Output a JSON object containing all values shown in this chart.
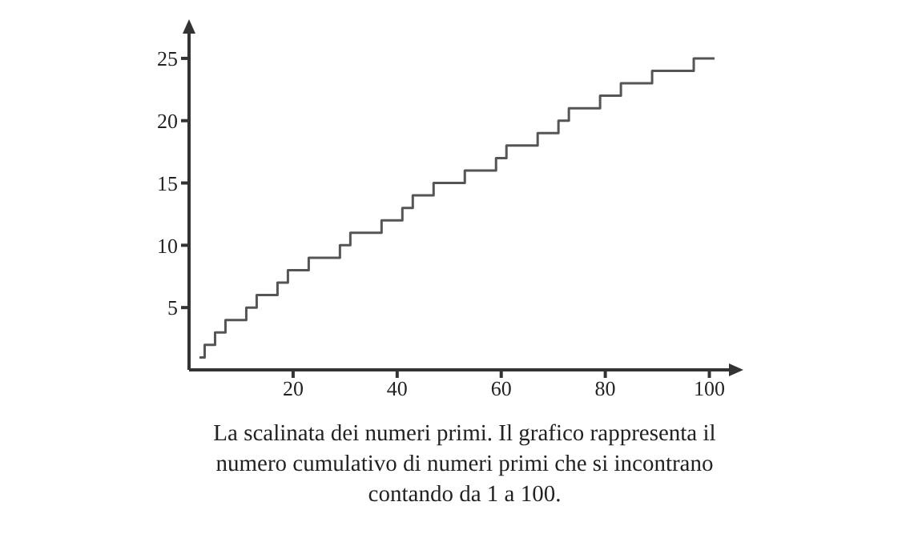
{
  "chart_data": {
    "type": "step",
    "x": [
      2,
      3,
      5,
      7,
      11,
      13,
      17,
      19,
      23,
      29,
      31,
      37,
      41,
      43,
      47,
      53,
      59,
      61,
      67,
      71,
      73,
      79,
      83,
      89,
      97,
      101
    ],
    "series": [
      {
        "color": "#555555",
        "values": [
          1,
          2,
          3,
          4,
          5,
          6,
          7,
          8,
          9,
          10,
          11,
          12,
          13,
          14,
          15,
          16,
          17,
          18,
          19,
          20,
          21,
          22,
          23,
          24,
          25,
          25
        ]
      }
    ],
    "xlim": [
      0,
      105
    ],
    "ylim": [
      0,
      27.5
    ],
    "xticks": [
      20,
      40,
      60,
      80,
      100
    ],
    "yticks": [
      5,
      10,
      15,
      20,
      25
    ],
    "grid": false,
    "legend": false,
    "marker": "none",
    "line_style": "solid",
    "annotations": [
      "La scalinata dei numeri primi. Il grafico rappresenta il numero cumulativo di numeri primi che si incontrano contando da 1 a 100."
    ]
  }
}
